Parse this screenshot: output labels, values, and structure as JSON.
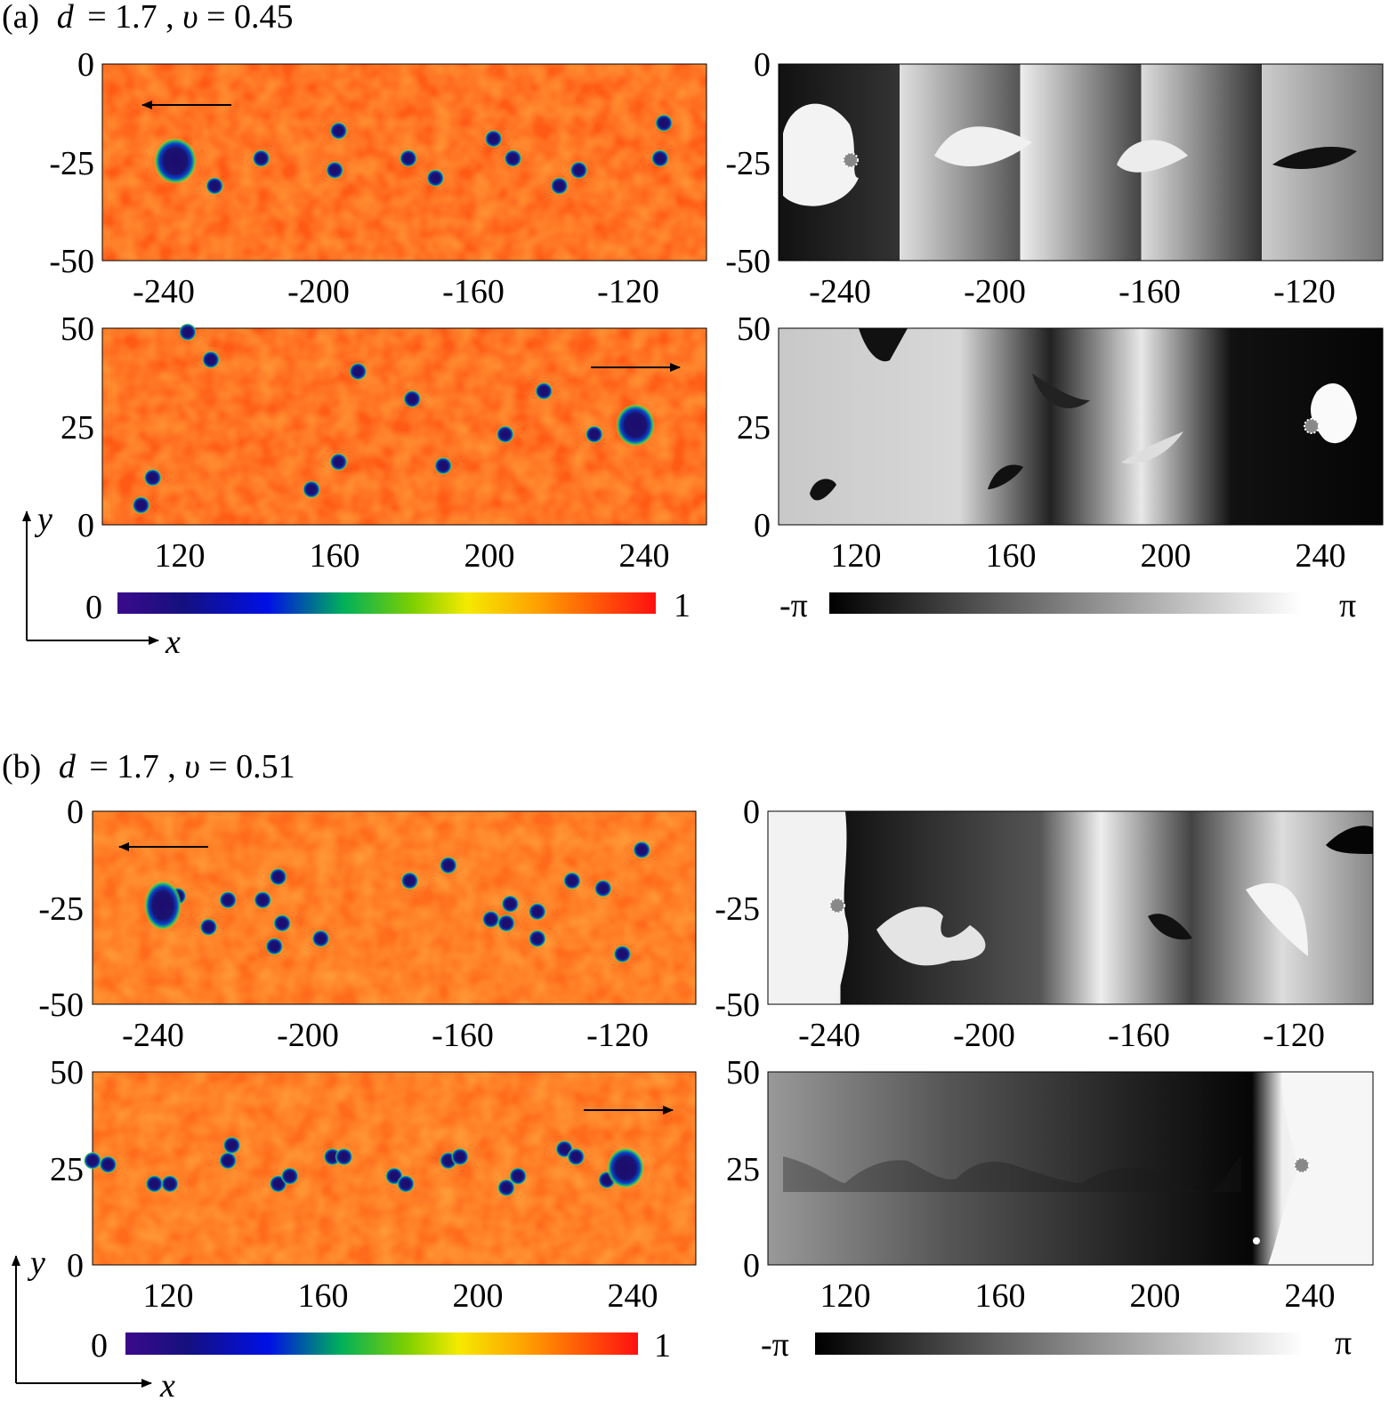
{
  "panels": [
    {
      "id": "a",
      "label": "(a)",
      "d_label": "d",
      "d_value": "1.7",
      "v_label": "υ",
      "v_value": "0.45",
      "top_x_ticks": [
        "-240",
        "-200",
        "-160",
        "-120"
      ],
      "top_y_ticks": [
        "0",
        "-25",
        "-50"
      ],
      "bottom_x_ticks": [
        "120",
        "160",
        "200",
        "240"
      ],
      "bottom_y_ticks": [
        "50",
        "25",
        "0"
      ],
      "density_colorbar": {
        "min": "0",
        "max": "1"
      },
      "phase_colorbar": {
        "min": "-π",
        "max": "π"
      },
      "top_vortices": [
        [
          -236,
          -24
        ],
        [
          -227,
          -31
        ],
        [
          -215,
          -24
        ],
        [
          -195,
          -17
        ],
        [
          -196,
          -27
        ],
        [
          -177,
          -24
        ],
        [
          -170,
          -29
        ],
        [
          -155,
          -19
        ],
        [
          -150,
          -24
        ],
        [
          -138,
          -31
        ],
        [
          -133,
          -27
        ],
        [
          -111,
          -15
        ],
        [
          -112,
          -24
        ]
      ],
      "bottom_vortices": [
        [
          122,
          49
        ],
        [
          128,
          42
        ],
        [
          166,
          39
        ],
        [
          180,
          32
        ],
        [
          214,
          34
        ],
        [
          204,
          23
        ],
        [
          227,
          23
        ],
        [
          113,
          12
        ],
        [
          110,
          5
        ],
        [
          154,
          9
        ],
        [
          161,
          16
        ],
        [
          188,
          15
        ],
        [
          238,
          25
        ]
      ]
    },
    {
      "id": "b",
      "label": "(b)",
      "d_label": "d",
      "d_value": "1.7",
      "v_label": "υ",
      "v_value": "0.51",
      "top_x_ticks": [
        "-240",
        "-200",
        "-160",
        "-120"
      ],
      "top_y_ticks": [
        "0",
        "-25",
        "-50"
      ],
      "bottom_x_ticks": [
        "120",
        "160",
        "200",
        "240"
      ],
      "bottom_y_ticks": [
        "50",
        "25",
        "0"
      ],
      "density_colorbar": {
        "min": "0",
        "max": "1"
      },
      "phase_colorbar": {
        "min": "-π",
        "max": "π"
      },
      "top_vortices": [
        [
          -238,
          -25
        ],
        [
          -234,
          -22
        ],
        [
          -226,
          -30
        ],
        [
          -221,
          -23
        ],
        [
          -212,
          -23
        ],
        [
          -208,
          -17
        ],
        [
          -207,
          -29
        ],
        [
          -209,
          -35
        ],
        [
          -197,
          -33
        ],
        [
          -174,
          -18
        ],
        [
          -164,
          -14
        ],
        [
          -153,
          -28
        ],
        [
          -149,
          -29
        ],
        [
          -148,
          -24
        ],
        [
          -141,
          -26
        ],
        [
          -141,
          -33
        ],
        [
          -132,
          -18
        ],
        [
          -124,
          -20
        ],
        [
          -119,
          -37
        ],
        [
          -114,
          -10
        ]
      ],
      "bottom_vortices": [
        [
          100,
          27
        ],
        [
          104,
          26
        ],
        [
          116,
          21
        ],
        [
          120,
          21
        ],
        [
          135,
          27
        ],
        [
          136,
          31
        ],
        [
          148,
          21
        ],
        [
          151,
          23
        ],
        [
          162,
          28
        ],
        [
          165,
          28
        ],
        [
          178,
          23
        ],
        [
          181,
          21
        ],
        [
          192,
          27
        ],
        [
          195,
          28
        ],
        [
          207,
          20
        ],
        [
          210,
          23
        ],
        [
          222,
          30
        ],
        [
          225,
          28
        ],
        [
          233,
          22
        ],
        [
          238,
          26
        ]
      ]
    }
  ],
  "axis_labels": {
    "x": "x",
    "y": "y"
  }
}
